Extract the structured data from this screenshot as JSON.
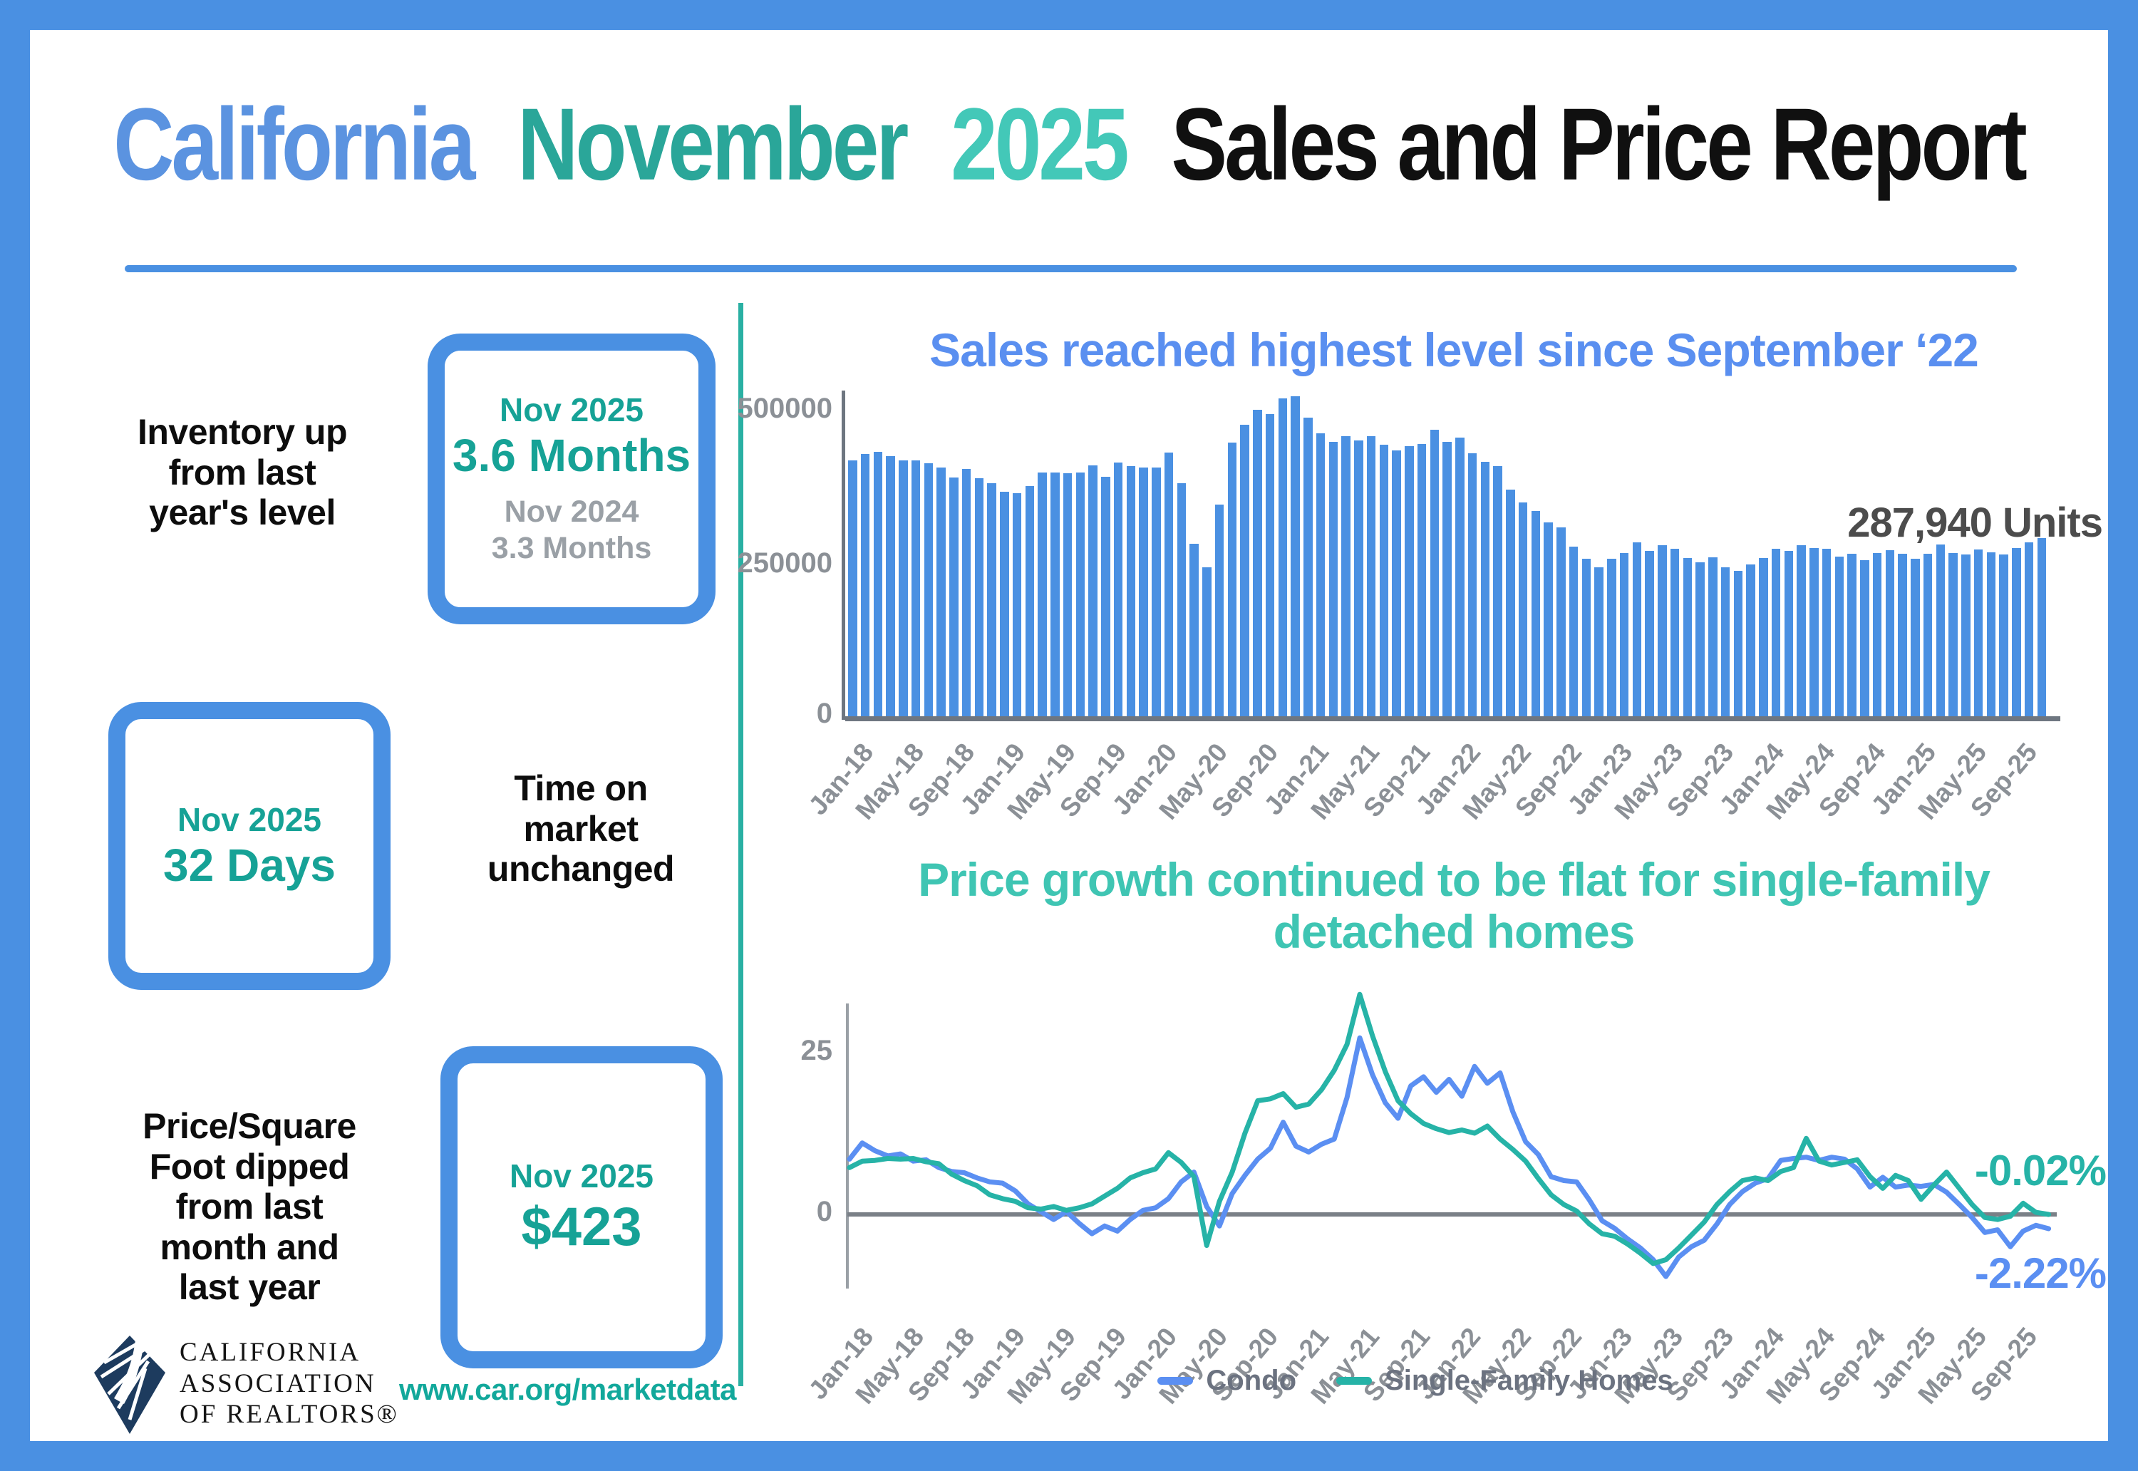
{
  "title": {
    "california": "California",
    "november": "November",
    "year": "2025",
    "rest": "Sales and Price Report",
    "california_color": "#5b93e0",
    "november_color": "#2aa699",
    "year_color": "#43c8b8",
    "rest_color": "#101010"
  },
  "stats": {
    "inventory": {
      "label": "Inventory up\nfrom last\nyear's level",
      "box": {
        "period": "Nov 2025",
        "value": "3.6 Months",
        "prev_period": "Nov 2024",
        "prev_value": "3.3 Months"
      }
    },
    "time_on_market": {
      "label": "Time on\nmarket\nunchanged",
      "box": {
        "period": "Nov 2025",
        "value": "32 Days"
      }
    },
    "price_sqft": {
      "label": "Price/Square\nFoot dipped\nfrom last\nmonth and\nlast year",
      "box": {
        "period": "Nov 2025",
        "value": "$423"
      }
    }
  },
  "footer": {
    "org": "CALIFORNIA\nASSOCIATION\nOF REALTORS®",
    "url": "www.car.org/marketdata",
    "logo_color": "#1d3b5e"
  },
  "colors": {
    "frame": "#4a90e2",
    "separator": "#2ab0a3",
    "axis_gray": "#6e7680",
    "tick_gray": "#8b9096"
  },
  "chart_data": [
    {
      "type": "bar",
      "title": "Sales reached highest level since September ‘22",
      "title_color": "#5a8ff0",
      "x_start": "Jan-18",
      "x_end": "Nov-25",
      "frequency": "monthly",
      "x_tick_labels": [
        "Jan-18",
        "May-18",
        "Sep-18",
        "Jan-19",
        "May-19",
        "Sep-19",
        "Jan-20",
        "May-20",
        "Sep-20",
        "Jan-21",
        "May-21",
        "Sep-21",
        "Jan-22",
        "May-22",
        "Sep-22",
        "Jan-23",
        "May-23",
        "Sep-23",
        "Jan-24",
        "May-24",
        "Sep-24",
        "Jan-25",
        "May-25",
        "Sep-25"
      ],
      "ylim": [
        0,
        520000
      ],
      "y_ticks": [
        0,
        250000,
        500000
      ],
      "grid": false,
      "bar_color": "#4a90e2",
      "annotation": "287,940 Units",
      "annotation_value": 287940,
      "values": [
        413000,
        423000,
        427000,
        420000,
        413000,
        413000,
        409000,
        402000,
        386000,
        399000,
        384000,
        376000,
        362000,
        360000,
        372000,
        394000,
        393000,
        392000,
        394000,
        405000,
        387000,
        410000,
        404000,
        401000,
        401000,
        426000,
        376000,
        279000,
        241000,
        342000,
        442000,
        471000,
        495000,
        488000,
        513000,
        517000,
        482000,
        457000,
        443000,
        452000,
        445000,
        452000,
        438000,
        429000,
        436000,
        439000,
        463000,
        443000,
        450000,
        424000,
        411000,
        404000,
        366000,
        345000,
        331000,
        313000,
        305000,
        274000,
        254000,
        240000,
        254000,
        263000,
        281000,
        267000,
        276000,
        270000,
        255000,
        248000,
        257000,
        241000,
        235000,
        245000,
        256000,
        270000,
        267000,
        276000,
        272000,
        270000,
        258000,
        262000,
        252000,
        264000,
        268000,
        262000,
        254000,
        262000,
        277000,
        263000,
        261000,
        269000,
        265000,
        261000,
        272000,
        281000,
        287940
      ]
    },
    {
      "type": "line",
      "title": "Price growth continued to be flat for single-family\ndetached homes",
      "title_color": "#3fc5b3",
      "x_start": "Jan-18",
      "x_end": "Nov-25",
      "frequency": "monthly",
      "x_tick_labels": [
        "Jan-18",
        "May-18",
        "Sep-18",
        "Jan-19",
        "May-19",
        "Sep-19",
        "Jan-20",
        "May-20",
        "Sep-20",
        "Jan-21",
        "May-21",
        "Sep-21",
        "Jan-22",
        "May-22",
        "Sep-22",
        "Jan-23",
        "May-23",
        "Sep-23",
        "Jan-24",
        "May-24",
        "Sep-24",
        "Jan-25",
        "May-25",
        "Sep-25"
      ],
      "ylim": [
        -11,
        35.8
      ],
      "y_ticks": [
        0,
        25
      ],
      "grid": false,
      "legend_position": "bottom",
      "series": [
        {
          "name": "Condo",
          "color": "#5b8ff2",
          "end_label": "-2.22%",
          "end_value": -2.22,
          "values": [
            8.5,
            11,
            9.8,
            9,
            9.3,
            8.2,
            8.4,
            7.2,
            6.6,
            6.4,
            5.6,
            5,
            4.8,
            3.6,
            1.6,
            0.4,
            -0.8,
            0.4,
            -1.4,
            -3,
            -1.8,
            -2.6,
            -0.8,
            0.6,
            1,
            2.4,
            5,
            6.5,
            1.2,
            -1.8,
            3.2,
            6,
            8.5,
            10.2,
            14.2,
            10.5,
            9.6,
            10.8,
            11.6,
            18,
            27.2,
            21.5,
            17.2,
            14.8,
            19.8,
            21.2,
            18.8,
            20.8,
            18.2,
            22.8,
            20.2,
            21.8,
            15.8,
            11.2,
            9.2,
            5.8,
            5.2,
            5,
            2.2,
            -1,
            -2.2,
            -3.8,
            -5.2,
            -7,
            -9.6,
            -6.6,
            -5,
            -4,
            -1.5,
            1.5,
            3.5,
            4.8,
            5.5,
            8.3,
            8.6,
            8.8,
            8.3,
            8.8,
            8.5,
            7,
            4.2,
            5.7,
            4.2,
            4.5,
            4.3,
            4.6,
            3.4,
            1.5,
            -0.5,
            -2.8,
            -2.4,
            -5,
            -2.6,
            -1.7,
            -2.22
          ]
        },
        {
          "name": "Single-Family Homes",
          "color": "#26b3a7",
          "end_label": "-0.02%",
          "end_value": -0.02,
          "values": [
            7.2,
            8.2,
            8.3,
            8.6,
            8.5,
            8.6,
            8.1,
            7.8,
            6.2,
            5.2,
            4.4,
            3,
            2.4,
            2,
            1,
            0.8,
            1.2,
            0.6,
            1,
            1.6,
            2.8,
            4,
            5.6,
            6.4,
            7,
            9.5,
            8,
            5.8,
            -4.8,
            2,
            6.5,
            12.5,
            17.5,
            17.8,
            18.6,
            16.5,
            17,
            19.2,
            22.2,
            26.2,
            33.9,
            27.5,
            22,
            17.5,
            15.5,
            14,
            13.2,
            12.6,
            13,
            12.5,
            13.6,
            11.6,
            10,
            8.2,
            5.5,
            3,
            1.5,
            0.5,
            -1.5,
            -3,
            -3.4,
            -4.6,
            -6,
            -7.6,
            -7,
            -5.2,
            -3.2,
            -1.2,
            1.5,
            3.5,
            5.2,
            5.6,
            5.2,
            6.6,
            7.2,
            11.7,
            8.2,
            7.6,
            8,
            8.4,
            5.8,
            4,
            6,
            5.2,
            2.3,
            4.5,
            6.5,
            4,
            1.5,
            -0.5,
            -0.8,
            -0.3,
            1.7,
            0.3,
            -0.02
          ]
        }
      ]
    }
  ]
}
